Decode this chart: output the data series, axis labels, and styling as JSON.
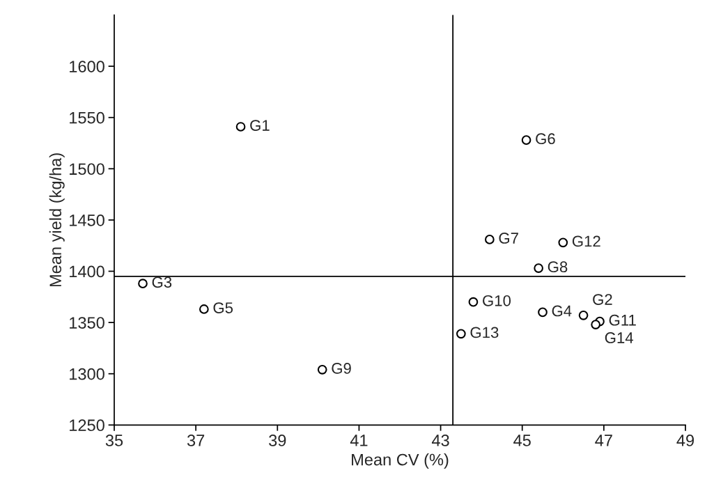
{
  "chart_data": {
    "type": "scatter",
    "xlabel": "Mean CV (%)",
    "ylabel": "Mean yield (kg/ha)",
    "x": [
      38.1,
      46.5,
      35.7,
      45.5,
      37.2,
      45.1,
      44.2,
      45.4,
      40.1,
      43.8,
      46.9,
      46.0,
      43.5,
      46.8
    ],
    "series": [
      {
        "color": "#000000",
        "values": [
          1541,
          1357,
          1388,
          1360,
          1363,
          1528,
          1431,
          1403,
          1304,
          1370,
          1351,
          1428,
          1339,
          1348
        ]
      }
    ],
    "marker": "circle",
    "xlim": [
      35,
      49
    ],
    "xticks": [
      35,
      37,
      39,
      41,
      43,
      45,
      47,
      49
    ],
    "ylim": [
      1250,
      1650
    ],
    "yticks": [
      1250,
      1300,
      1350,
      1400,
      1450,
      1500,
      1550,
      1600
    ],
    "grid": false,
    "legend": false,
    "ref_lines": [
      {
        "axis": "x",
        "value": 43.3,
        "color": "#000000",
        "line_style": "solid"
      },
      {
        "axis": "y",
        "value": 1395,
        "color": "#000000",
        "line_style": "solid"
      }
    ],
    "annotations": [
      {
        "text": "G1",
        "x": 38.1,
        "y": 1541
      },
      {
        "text": "G2",
        "x": 46.5,
        "y": 1357
      },
      {
        "text": "G3",
        "x": 35.7,
        "y": 1388
      },
      {
        "text": "G4",
        "x": 45.5,
        "y": 1360
      },
      {
        "text": "G5",
        "x": 37.2,
        "y": 1363
      },
      {
        "text": "G6",
        "x": 45.1,
        "y": 1528
      },
      {
        "text": "G7",
        "x": 44.2,
        "y": 1431
      },
      {
        "text": "G8",
        "x": 45.4,
        "y": 1403
      },
      {
        "text": "G9",
        "x": 40.1,
        "y": 1304
      },
      {
        "text": "G10",
        "x": 43.8,
        "y": 1370
      },
      {
        "text": "G11",
        "x": 46.9,
        "y": 1351
      },
      {
        "text": "G12",
        "x": 46.0,
        "y": 1428
      },
      {
        "text": "G13",
        "x": 43.5,
        "y": 1339
      },
      {
        "text": "G14",
        "x": 46.8,
        "y": 1348
      }
    ]
  }
}
